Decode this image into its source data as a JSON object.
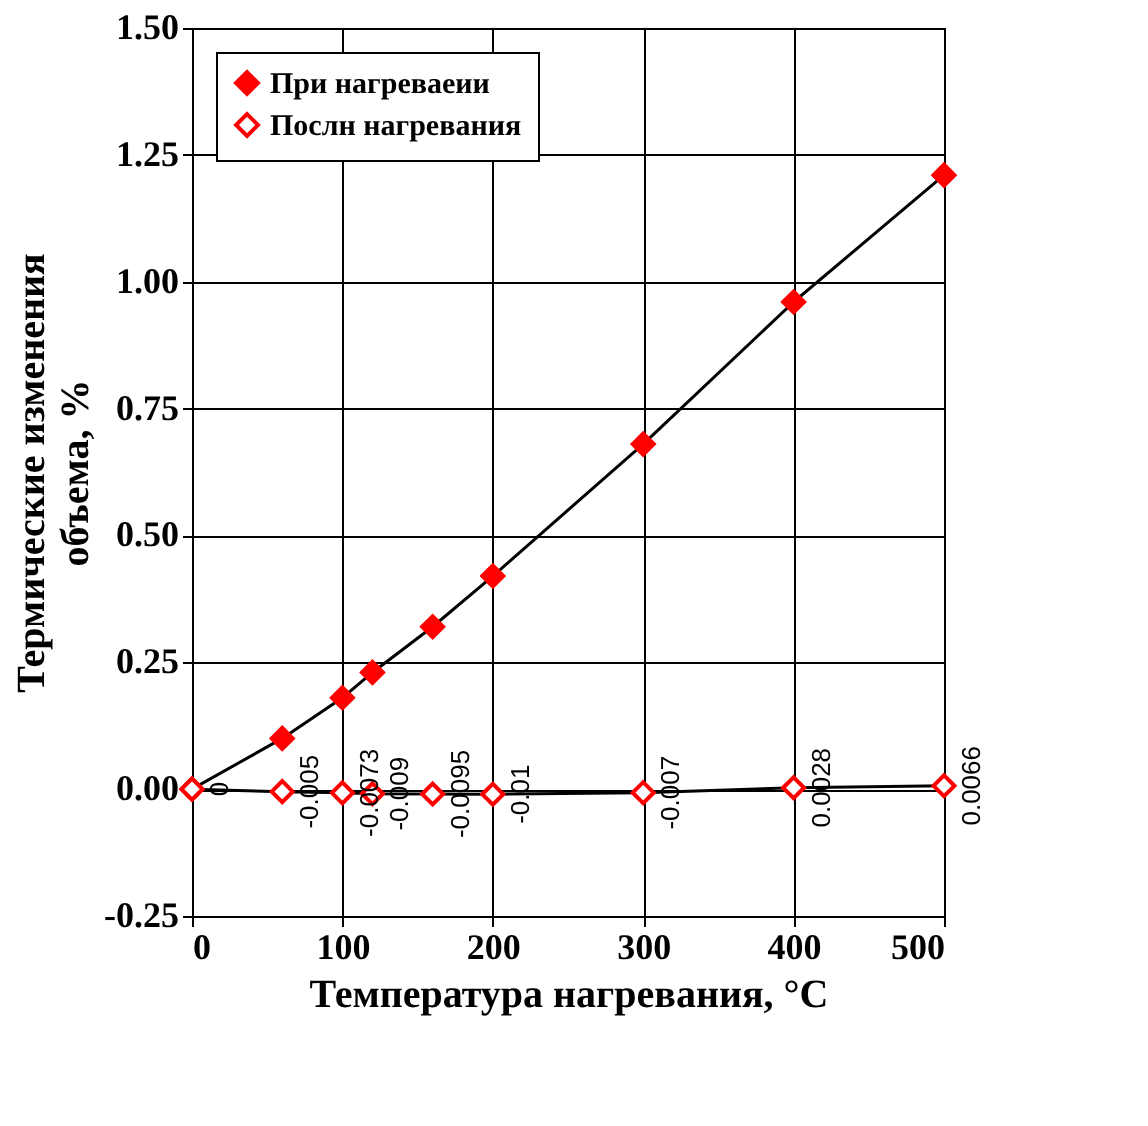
{
  "chart_data": {
    "type": "line",
    "xlabel": "Температура нагревания,  °С",
    "ylabel": "Термические изменения\nобъема, %",
    "x": [
      0,
      60,
      100,
      120,
      160,
      200,
      300,
      400,
      500
    ],
    "series": [
      {
        "name": "При нагреваеии",
        "color": "#ff0000",
        "values": [
          0,
          0.1,
          0.18,
          0.23,
          0.32,
          0.42,
          0.68,
          0.96,
          1.21
        ]
      },
      {
        "name": "Послн нагревания",
        "color": "#ff0000",
        "values": [
          0,
          -0.005,
          -0.0073,
          -0.009,
          -0.0095,
          -0.01,
          -0.007,
          0.0028,
          0.0066
        ],
        "value_labels": [
          "0",
          "-0.005",
          "-0.0073",
          "-0.009",
          "-0.0095",
          "-0.01",
          "-0.007",
          "0.0028",
          "0.0066"
        ]
      }
    ],
    "xlim": [
      0,
      500
    ],
    "xticks": [
      0,
      100,
      200,
      300,
      400,
      500
    ],
    "ylim": [
      -0.25,
      1.5
    ],
    "yticks": [
      {
        "value": -0.25,
        "label": "-0.25"
      },
      {
        "value": 0,
        "label": "0.00"
      },
      {
        "value": 0.25,
        "label": "0.25"
      },
      {
        "value": 0.5,
        "label": "0.50"
      },
      {
        "value": 0.75,
        "label": "0.75"
      },
      {
        "value": 1.0,
        "label": "1.00"
      },
      {
        "value": 1.25,
        "label": "1.25"
      },
      {
        "value": 1.5,
        "label": "1.50"
      }
    ],
    "grid": true,
    "legend": "top left",
    "marker": "diamond",
    "line_style": "solid"
  }
}
